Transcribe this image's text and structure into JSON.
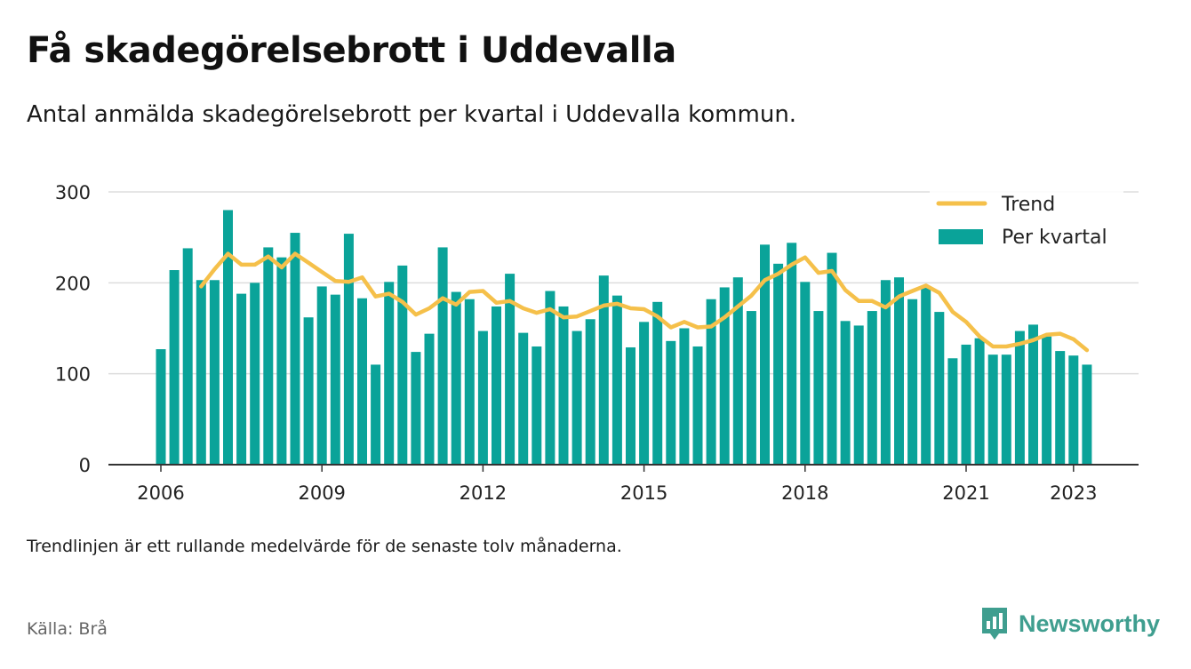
{
  "title": "Få skadegörelsebrott i Uddevalla",
  "subtitle": "Antal anmälda skadegörelsebrott per kvartal i Uddevalla kommun.",
  "note": "Trendlinjen är ett rullande medelvärde för de senaste tolv månaderna.",
  "source": "Källa: Brå",
  "brand": {
    "name": "Newsworthy",
    "icon": "bar-chart-logo-icon",
    "color": "#3f9e8f"
  },
  "colors": {
    "bars": "#0aa399",
    "trend": "#f5c04a",
    "grid": "#dddddd",
    "axis": "#333333"
  },
  "chart_data": {
    "type": "bar",
    "y_ticks": [
      "0",
      "100",
      "200",
      "300"
    ],
    "ylim": [
      0,
      300
    ],
    "x_ticks": [
      "2006",
      "2009",
      "2012",
      "2015",
      "2018",
      "2021",
      "2023"
    ],
    "legend": {
      "position": "top-right",
      "entries": [
        "Trend",
        "Per kvartal"
      ]
    },
    "grid": true,
    "series": [
      {
        "name": "Per kvartal",
        "kind": "bar",
        "start": "2006 Q1",
        "values": [
          127,
          214,
          238,
          203,
          203,
          280,
          188,
          200,
          239,
          228,
          255,
          162,
          196,
          187,
          254,
          183,
          110,
          201,
          219,
          124,
          144,
          239,
          190,
          182,
          147,
          174,
          210,
          145,
          130,
          191,
          174,
          147,
          160,
          208,
          186,
          129,
          157,
          179,
          136,
          150,
          130,
          182,
          195,
          206,
          169,
          242,
          221,
          244,
          201,
          169,
          233,
          158,
          153,
          169,
          203,
          206,
          182,
          195,
          168,
          117,
          132,
          139,
          121,
          121,
          147,
          154,
          141,
          125,
          120,
          110
        ]
      },
      {
        "name": "Trend",
        "kind": "line",
        "start": "2006 Q4",
        "values": [
          196,
          215,
          232,
          220,
          220,
          229,
          217,
          232,
          222,
          212,
          202,
          201,
          206,
          185,
          188,
          179,
          165,
          172,
          183,
          176,
          190,
          191,
          178,
          180,
          172,
          167,
          171,
          162,
          163,
          169,
          175,
          177,
          172,
          171,
          163,
          151,
          157,
          151,
          152,
          162,
          174,
          186,
          203,
          210,
          220,
          228,
          211,
          213,
          192,
          180,
          180,
          173,
          185,
          191,
          197,
          189,
          168,
          157,
          141,
          130,
          130,
          133,
          137,
          143,
          144,
          138,
          126
        ]
      }
    ]
  }
}
